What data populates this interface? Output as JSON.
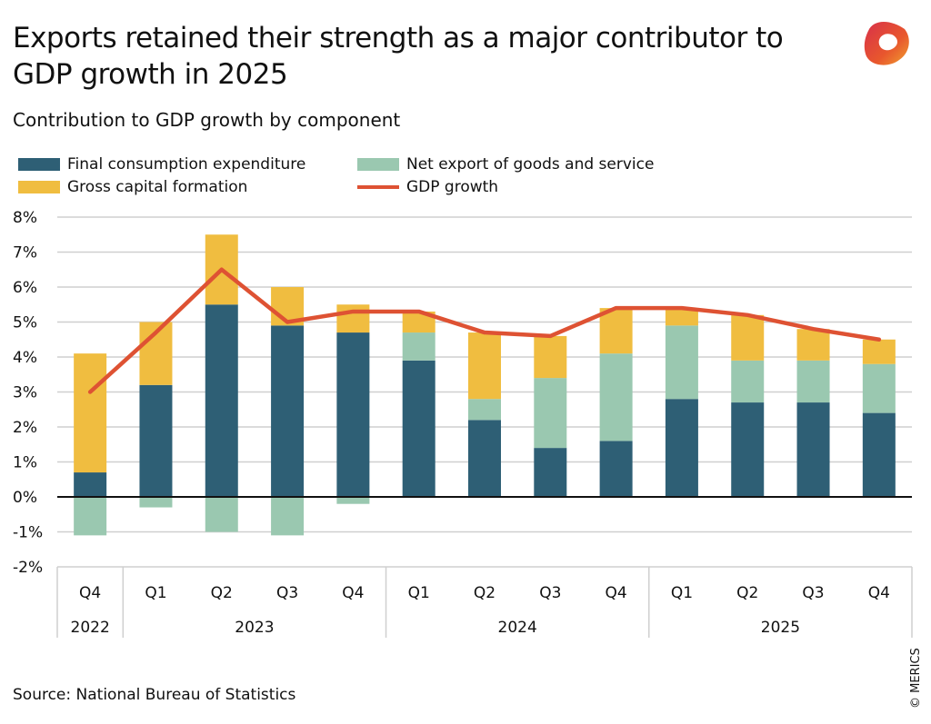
{
  "header": {
    "title": "Exports retained their strength as a major contributor to GDP growth in 2025",
    "logo": "MERICS logo"
  },
  "chart_data": {
    "type": "bar",
    "stacked": true,
    "title": "Exports retained their strength as a major contributor to GDP growth in 2025",
    "subtitle": "Contribution to GDP growth by component",
    "categories": [
      "Q4",
      "Q1",
      "Q2",
      "Q3",
      "Q4",
      "Q1",
      "Q2",
      "Q3",
      "Q4",
      "Q1",
      "Q2",
      "Q3",
      "Q4"
    ],
    "years": [
      {
        "label": "2022",
        "span": 1
      },
      {
        "label": "2023",
        "span": 4
      },
      {
        "label": "2024",
        "span": 4
      },
      {
        "label": "2025",
        "span": 4
      }
    ],
    "yticks": [
      "8%",
      "7%",
      "6%",
      "5%",
      "4%",
      "3%",
      "2%",
      "1%",
      "0%",
      "-1%",
      "-2%"
    ],
    "ylim": [
      -2,
      8
    ],
    "grid": true,
    "legend_placement": "top-left",
    "series": [
      {
        "name": "Final consumption expenditure",
        "color": "#2e5f75",
        "values": [
          0.7,
          3.2,
          5.5,
          4.9,
          4.7,
          3.9,
          2.2,
          1.4,
          1.6,
          2.8,
          2.7,
          2.7,
          2.4
        ]
      },
      {
        "name": "Net export of goods and service",
        "color": "#9ac8b0",
        "values": [
          -1.1,
          -0.3,
          -1.0,
          -1.1,
          -0.2,
          0.8,
          0.6,
          2.0,
          2.5,
          2.1,
          1.2,
          1.2,
          1.4
        ]
      },
      {
        "name": "Gross capital formation",
        "color": "#f0bd40",
        "values": [
          3.4,
          1.8,
          2.0,
          1.1,
          0.8,
          0.6,
          1.9,
          1.2,
          1.3,
          0.5,
          1.3,
          0.9,
          0.7
        ]
      },
      {
        "name": "GDP growth",
        "type": "line",
        "color": "#de5233",
        "values": [
          3.0,
          4.7,
          6.5,
          5.0,
          5.3,
          5.3,
          4.7,
          4.6,
          5.4,
          5.4,
          5.2,
          4.8,
          4.5
        ]
      }
    ]
  },
  "footer": {
    "source": "Source: National Bureau of Statistics",
    "credit": "© MERICS"
  }
}
